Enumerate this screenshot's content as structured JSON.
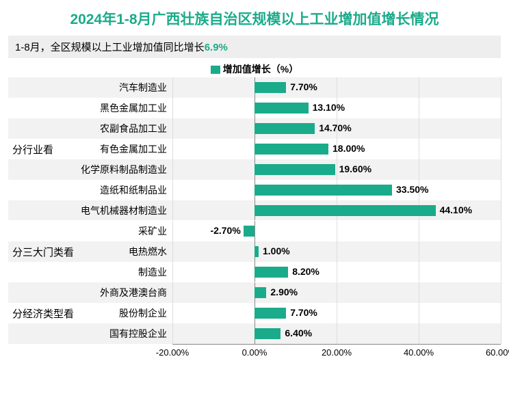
{
  "title": "2024年1-8月广西壮族自治区规模以上工业增加值增长情况",
  "title_color": "#1aab8a",
  "title_fontsize": 21,
  "subtitle_prefix": "1-8月，全区规模以上工业增加值同比增长",
  "subtitle_value": "6.9%",
  "subtitle_value_color": "#1aab8a",
  "subtitle_bg": "#eeeeee",
  "legend_label": "增加值增长（%）",
  "legend_color": "#1aab8a",
  "chart": {
    "type": "bar_horizontal",
    "bar_color": "#1aab8a",
    "alt_row_bg": "#f2f2f2",
    "xmin": -20,
    "xmax": 60,
    "xticks": [
      -20,
      0,
      20,
      40,
      60
    ],
    "xtick_labels": [
      "-20.00%",
      "0.00%",
      "20.00%",
      "40.00%",
      "60.00%"
    ],
    "groups": [
      {
        "label": "分行业看",
        "rows": [
          {
            "category": "汽车制造业",
            "value": 7.7,
            "label": "7.70%"
          },
          {
            "category": "黑色金属加工业",
            "value": 13.1,
            "label": "13.10%"
          },
          {
            "category": "农副食品加工业",
            "value": 14.7,
            "label": "14.70%"
          },
          {
            "category": "有色金属加工业",
            "value": 18.0,
            "label": "18.00%"
          },
          {
            "category": "化学原料制品制造业",
            "value": 19.6,
            "label": "19.60%"
          },
          {
            "category": "造纸和纸制品业",
            "value": 33.5,
            "label": "33.50%"
          },
          {
            "category": "电气机械器材制造业",
            "value": 44.1,
            "label": "44.10%"
          }
        ]
      },
      {
        "label": "分三大门类看",
        "rows": [
          {
            "category": "采矿业",
            "value": -2.7,
            "label": "-2.70%"
          },
          {
            "category": "电热燃水",
            "value": 1.0,
            "label": "1.00%"
          },
          {
            "category": "制造业",
            "value": 8.2,
            "label": "8.20%"
          }
        ]
      },
      {
        "label": "分经济类型看",
        "rows": [
          {
            "category": "外商及港澳台商",
            "value": 2.9,
            "label": "2.90%"
          },
          {
            "category": "股份制企业",
            "value": 7.7,
            "label": "7.70%"
          },
          {
            "category": "国有控股企业",
            "value": 6.4,
            "label": "6.40%"
          }
        ]
      }
    ]
  }
}
